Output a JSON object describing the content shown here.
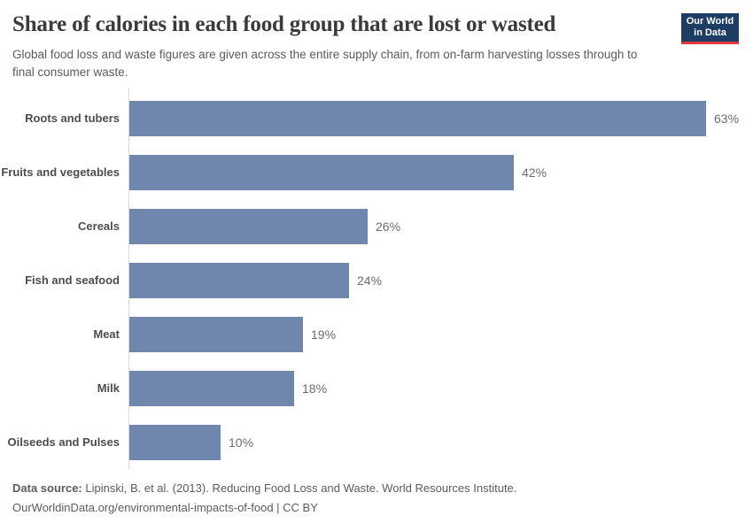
{
  "header": {
    "title": "Share of calories in each food group that are lost or wasted",
    "subtitle": "Global food loss and waste figures are given across the entire supply chain, from on-farm harvesting losses through to final consumer waste.",
    "logo": {
      "line1": "Our World",
      "line2": "in Data"
    }
  },
  "chart_data": {
    "type": "bar",
    "orientation": "horizontal",
    "title": "Share of calories in each food group that are lost or wasted",
    "categories": [
      "Roots and tubers",
      "Fruits and vegetables",
      "Cereals",
      "Fish and seafood",
      "Meat",
      "Milk",
      "Oilseeds and Pulses"
    ],
    "values": [
      63,
      42,
      26,
      24,
      19,
      18,
      10
    ],
    "value_labels": [
      "63%",
      "42%",
      "26%",
      "24%",
      "19%",
      "18%",
      "10%"
    ],
    "unit": "%",
    "xlabel": "",
    "ylabel": "",
    "grid": false,
    "legend": false,
    "bar_color": "#6f87ad"
  },
  "footer": {
    "data_source_label": "Data source:",
    "data_source_text": "Lipinski, B. et al. (2013). Reducing Food Loss and Waste. World Resources Institute.",
    "note": "OurWorldinData.org/environmental-impacts-of-food | CC BY"
  },
  "colors": {
    "bar": "#6f87ad",
    "axis": "#d7d7d7",
    "logo_background": "#1d3d63",
    "logo_accent": "#e0373e",
    "title_text": "#3a3a3a",
    "body_text": "#5b5b5b"
  }
}
